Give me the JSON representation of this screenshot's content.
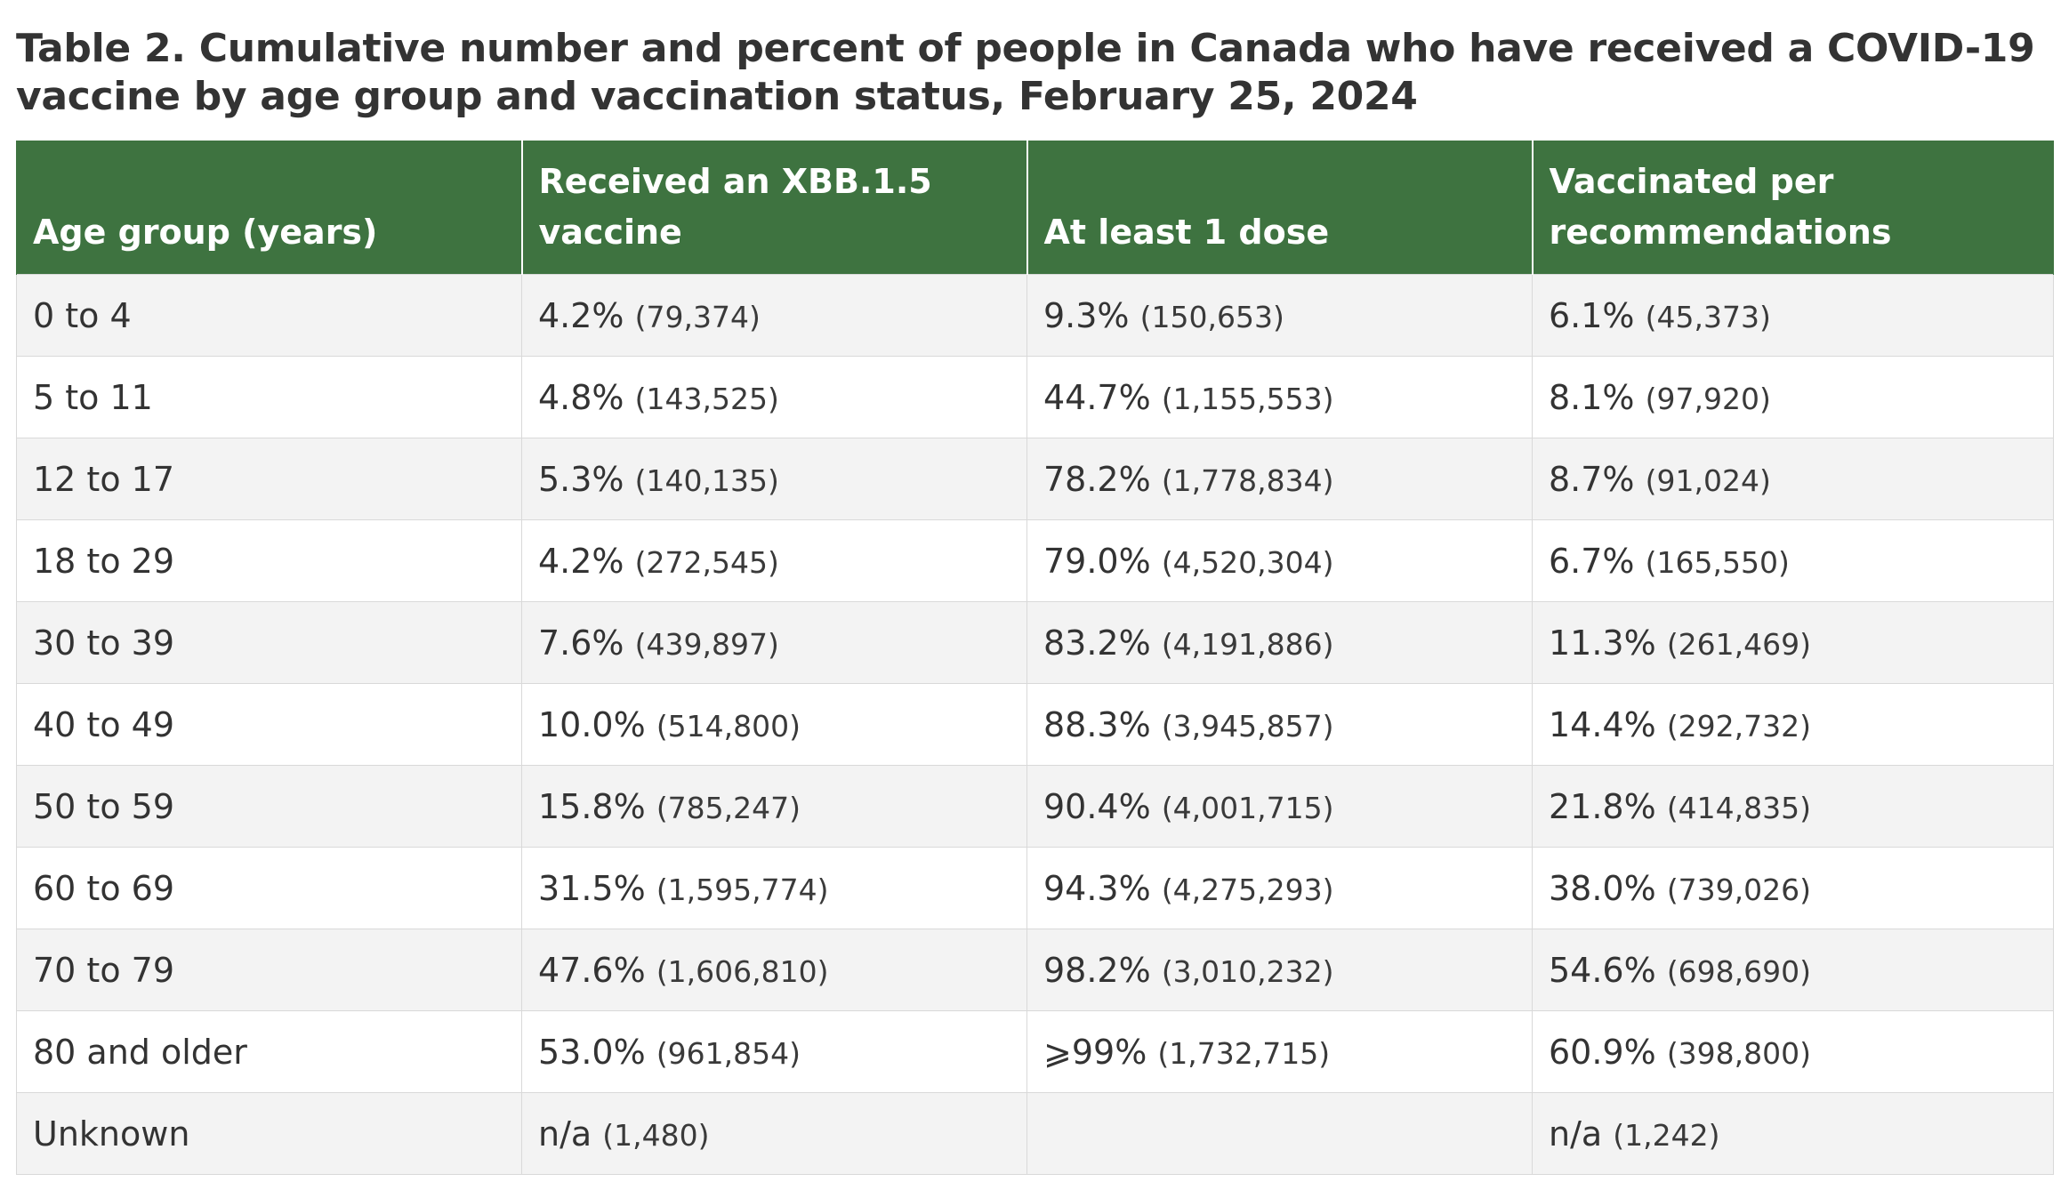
{
  "caption": "Table 2. Cumulative number and percent of people in Canada who have received a COVID-19 vaccine by age group and vaccination status, February 25, 2024",
  "columns": [
    "Age group (years)",
    "Received an XBB.1.5 vaccine",
    "At least 1 dose",
    "Vaccinated per recommendations"
  ],
  "rows": [
    {
      "age": "0 to 4",
      "xbb": {
        "pct": "4.2%",
        "n": "(79,374)"
      },
      "dose": {
        "pct": "9.3%",
        "n": "(150,653)"
      },
      "rec": {
        "pct": "6.1%",
        "n": "(45,373)"
      }
    },
    {
      "age": "5 to 11",
      "xbb": {
        "pct": "4.8%",
        "n": "(143,525)"
      },
      "dose": {
        "pct": "44.7%",
        "n": "(1,155,553)"
      },
      "rec": {
        "pct": "8.1%",
        "n": "(97,920)"
      }
    },
    {
      "age": "12 to 17",
      "xbb": {
        "pct": "5.3%",
        "n": "(140,135)"
      },
      "dose": {
        "pct": "78.2%",
        "n": "(1,778,834)"
      },
      "rec": {
        "pct": "8.7%",
        "n": "(91,024)"
      }
    },
    {
      "age": "18 to 29",
      "xbb": {
        "pct": "4.2%",
        "n": "(272,545)"
      },
      "dose": {
        "pct": "79.0%",
        "n": "(4,520,304)"
      },
      "rec": {
        "pct": "6.7%",
        "n": "(165,550)"
      }
    },
    {
      "age": "30 to 39",
      "xbb": {
        "pct": "7.6%",
        "n": "(439,897)"
      },
      "dose": {
        "pct": "83.2%",
        "n": "(4,191,886)"
      },
      "rec": {
        "pct": "11.3%",
        "n": "(261,469)"
      }
    },
    {
      "age": "40 to 49",
      "xbb": {
        "pct": "10.0%",
        "n": "(514,800)"
      },
      "dose": {
        "pct": "88.3%",
        "n": "(3,945,857)"
      },
      "rec": {
        "pct": "14.4%",
        "n": "(292,732)"
      }
    },
    {
      "age": "50 to 59",
      "xbb": {
        "pct": "15.8%",
        "n": "(785,247)"
      },
      "dose": {
        "pct": "90.4%",
        "n": "(4,001,715)"
      },
      "rec": {
        "pct": "21.8%",
        "n": "(414,835)"
      }
    },
    {
      "age": "60 to 69",
      "xbb": {
        "pct": "31.5%",
        "n": "(1,595,774)"
      },
      "dose": {
        "pct": "94.3%",
        "n": "(4,275,293)"
      },
      "rec": {
        "pct": "38.0%",
        "n": "(739,026)"
      }
    },
    {
      "age": "70 to 79",
      "xbb": {
        "pct": "47.6%",
        "n": "(1,606,810)"
      },
      "dose": {
        "pct": "98.2%",
        "n": "(3,010,232)"
      },
      "rec": {
        "pct": "54.6%",
        "n": "(698,690)"
      }
    },
    {
      "age": "80 and older",
      "xbb": {
        "pct": "53.0%",
        "n": "(961,854)"
      },
      "dose": {
        "pct": "⩾99%",
        "n": "(1,732,715)"
      },
      "rec": {
        "pct": "60.9%",
        "n": "(398,800)"
      }
    },
    {
      "age": "Unknown",
      "xbb": {
        "pct": "n/a",
        "n": "(1,480)"
      },
      "dose": {
        "pct": "",
        "n": ""
      },
      "rec": {
        "pct": "n/a",
        "n": "(1,242)"
      }
    }
  ]
}
